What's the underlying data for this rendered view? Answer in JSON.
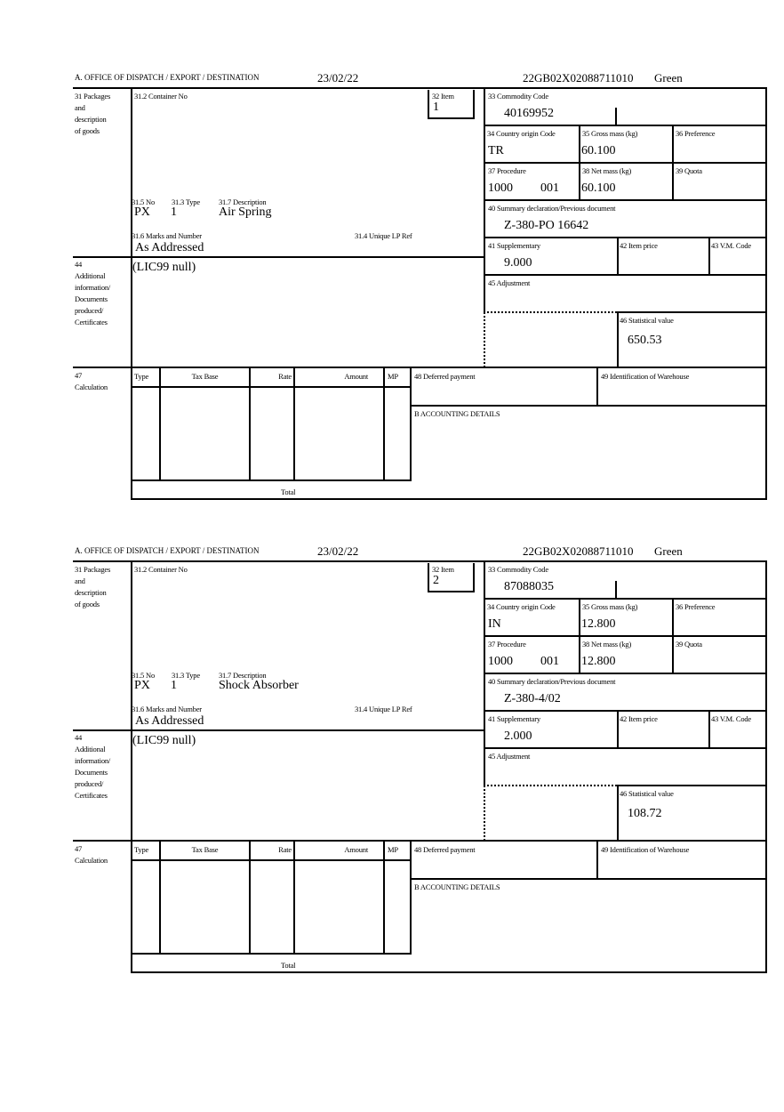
{
  "labels": {
    "office": "A.  OFFICE OF DISPATCH / EXPORT / DESTINATION",
    "packages": [
      "31 Packages",
      "and",
      "description",
      "of goods"
    ],
    "container_no": "31.2 Container No",
    "item": "32 Item",
    "commodity_code": "33 Commodity Code",
    "country_origin": "34 Country origin Code",
    "gross_mass": "35 Gross mass (kg)",
    "preference": "36 Preference",
    "procedure": "37 Procedure",
    "net_mass": "38 Net mass (kg)",
    "quota": "39 Quota",
    "summary_decl": "40 Summary declaration/Previous document",
    "supplementary": "41 Supplementary",
    "item_price": "42 Item price",
    "vm_code": "43 V.M. Code",
    "adjustment": "45 Adjustment",
    "statistical_value": "46 Statistical value",
    "pkg_no": "31.5 No",
    "pkg_type": "31.3 Type",
    "pkg_desc": "31.7 Description",
    "marks": "31.6 Marks and Number",
    "unique_ref": "31.4 Unique LP Ref",
    "additional": [
      "44",
      "Additional",
      "information/",
      "Documents",
      "produced/",
      "Certificates"
    ],
    "calculation": [
      "47",
      "Calculation"
    ],
    "calc_type": "Type",
    "calc_tax_base": "Tax Base",
    "calc_rate": "Rate",
    "calc_amount": "Amount",
    "calc_mp": "MP",
    "deferred_payment": "48 Deferred payment",
    "warehouse": "49 Identification of Warehouse",
    "accounting": "B ACCOUNTING DETAILS",
    "total": "Total"
  },
  "items": [
    {
      "date": "23/02/22",
      "reference": "22GB02X02088711010",
      "route": "Green",
      "item_no": "1",
      "commodity_code": "40169952",
      "country_origin": "TR",
      "gross_mass": "60.100",
      "procedure": "1000",
      "procedure_extra": "001",
      "net_mass": "60.100",
      "summary_decl": "Z-380-PO 16642",
      "supplementary": "9.000",
      "statistical_value": "650.53",
      "pkg_no": "PX",
      "pkg_type": "1",
      "pkg_desc": "Air Spring",
      "marks": "As Addressed",
      "additional_info": "(LIC99 null)"
    },
    {
      "date": "23/02/22",
      "reference": "22GB02X02088711010",
      "route": "Green",
      "item_no": "2",
      "commodity_code": "87088035",
      "country_origin": "IN",
      "gross_mass": "12.800",
      "procedure": "1000",
      "procedure_extra": "001",
      "net_mass": "12.800",
      "summary_decl": "Z-380-4/02",
      "supplementary": "2.000",
      "statistical_value": "108.72",
      "pkg_no": "PX",
      "pkg_type": "1",
      "pkg_desc": "Shock Absorber",
      "marks": "As Addressed",
      "additional_info": "(LIC99 null)"
    }
  ]
}
